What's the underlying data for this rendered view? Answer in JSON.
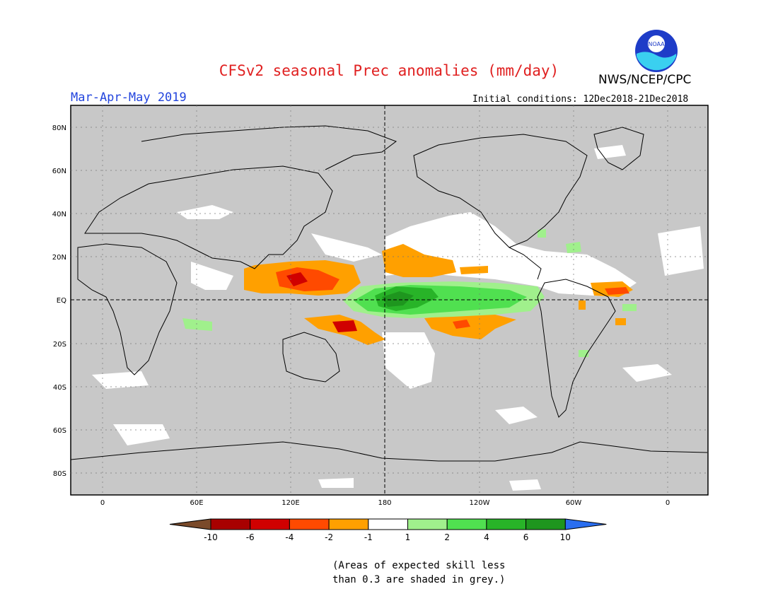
{
  "title": "CFSv2 seasonal Prec anomalies (mm/day)",
  "organization": "NWS/NCEP/CPC",
  "logo_text": "NOAA",
  "season_label": "Mar-Apr-May 2019",
  "initial_conditions": "Initial conditions: 12Dec2018-21Dec2018",
  "map": {
    "lat_ticks": [
      "80N",
      "60N",
      "40N",
      "20N",
      "EQ",
      "20S",
      "40S",
      "60S",
      "80S"
    ],
    "lon_ticks": [
      "0",
      "60E",
      "120E",
      "180",
      "120W",
      "60W",
      "0"
    ],
    "grey_shading": "#c8c8c8",
    "colorbar": {
      "labels": [
        "-10",
        "-6",
        "-4",
        "-2",
        "-1",
        "1",
        "2",
        "4",
        "6",
        "10"
      ],
      "colors": [
        "#7a4a2a",
        "#a80000",
        "#d00000",
        "#ff4a00",
        "#ffa000",
        "#ffffff",
        "#a0f08c",
        "#50e050",
        "#28b428",
        "#1e961e",
        "#2a6ef0"
      ]
    }
  },
  "note_line1": "(Areas of expected skill less",
  "note_line2": "than 0.3 are shaded in grey.)"
}
